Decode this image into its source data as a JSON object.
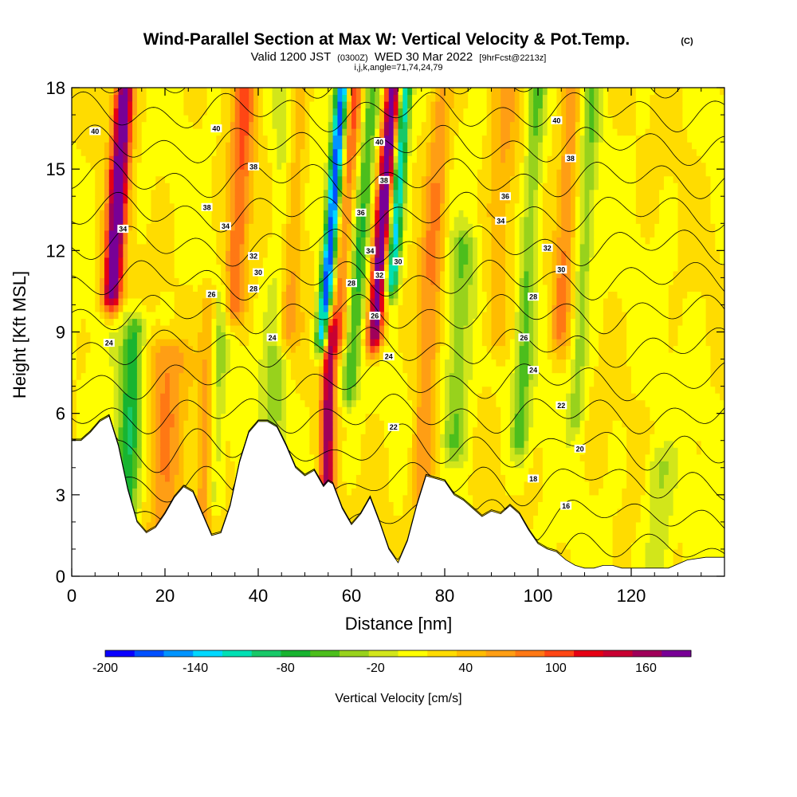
{
  "chart_data": {
    "type": "heatmap",
    "title": "Wind-Parallel Section at Max W: Vertical Velocity & Pot.Temp.",
    "title_mark": "(C)",
    "subtitle": {
      "prefix": "Valid 1200 JST",
      "zulu": "(0300Z)",
      "date": "WED 30 Mar 2022",
      "forecast": "[9hrFcst@2213z]"
    },
    "subtitle2": "i,j,k,angle=71,74,24,79",
    "xlabel": "Distance [nm]",
    "ylabel": "Height [Kft MSL]",
    "xlim": [
      0,
      140
    ],
    "ylim": [
      0,
      18
    ],
    "x_ticks": [
      0,
      20,
      40,
      60,
      80,
      100,
      120
    ],
    "y_ticks": [
      0,
      3,
      6,
      9,
      12,
      15,
      18
    ],
    "colorbar": {
      "label": "Vertical Velocity [cm/s]",
      "min": -200,
      "max": 190,
      "step": 20,
      "tick_labels": [
        "-200",
        "-140",
        "-80",
        "-20",
        "40",
        "100",
        "160"
      ],
      "tick_values": [
        -200,
        -140,
        -80,
        -20,
        40,
        100,
        160
      ],
      "colors": [
        "#0a00ff",
        "#0050ff",
        "#0094ff",
        "#00d8ff",
        "#00e0b4",
        "#18c868",
        "#18b430",
        "#4cbe1c",
        "#98d21c",
        "#d2e61a",
        "#ffff00",
        "#ffdc00",
        "#ffbc00",
        "#ff9e14",
        "#ff7814",
        "#ff4614",
        "#e60014",
        "#c80032",
        "#a0005a",
        "#780096"
      ]
    },
    "terrain": [
      [
        0,
        5.0
      ],
      [
        2,
        5.0
      ],
      [
        4,
        5.3
      ],
      [
        6,
        5.7
      ],
      [
        8,
        5.9
      ],
      [
        10,
        4.8
      ],
      [
        12,
        3.2
      ],
      [
        14,
        2.0
      ],
      [
        16,
        1.6
      ],
      [
        18,
        1.8
      ],
      [
        20,
        2.3
      ],
      [
        22,
        2.9
      ],
      [
        24,
        3.3
      ],
      [
        26,
        3.1
      ],
      [
        28,
        2.3
      ],
      [
        30,
        1.5
      ],
      [
        32,
        1.6
      ],
      [
        34,
        2.6
      ],
      [
        36,
        4.2
      ],
      [
        38,
        5.3
      ],
      [
        40,
        5.7
      ],
      [
        42,
        5.7
      ],
      [
        44,
        5.5
      ],
      [
        46,
        4.8
      ],
      [
        48,
        4.0
      ],
      [
        50,
        3.7
      ],
      [
        52,
        3.9
      ],
      [
        54,
        3.3
      ],
      [
        55,
        3.5
      ],
      [
        56,
        3.4
      ],
      [
        58,
        2.5
      ],
      [
        60,
        1.9
      ],
      [
        62,
        2.3
      ],
      [
        64,
        2.9
      ],
      [
        66,
        2.0
      ],
      [
        68,
        1.0
      ],
      [
        70,
        0.5
      ],
      [
        72,
        1.3
      ],
      [
        74,
        2.6
      ],
      [
        76,
        3.7
      ],
      [
        78,
        3.6
      ],
      [
        80,
        3.5
      ],
      [
        82,
        3.0
      ],
      [
        84,
        2.8
      ],
      [
        86,
        2.5
      ],
      [
        88,
        2.2
      ],
      [
        90,
        2.4
      ],
      [
        92,
        2.3
      ],
      [
        94,
        2.6
      ],
      [
        96,
        2.3
      ],
      [
        98,
        1.7
      ],
      [
        100,
        1.2
      ],
      [
        102,
        1.0
      ],
      [
        104,
        0.9
      ],
      [
        106,
        0.6
      ],
      [
        108,
        0.4
      ],
      [
        110,
        0.3
      ],
      [
        112,
        0.3
      ],
      [
        114,
        0.4
      ],
      [
        116,
        0.4
      ],
      [
        118,
        0.3
      ],
      [
        120,
        0.3
      ],
      [
        124,
        0.3
      ],
      [
        128,
        0.3
      ],
      [
        132,
        0.6
      ],
      [
        136,
        0.7
      ],
      [
        139,
        0.7
      ]
    ],
    "w_features": [
      {
        "x": 10,
        "width": 2.0,
        "w": 190,
        "z_min": 10.5,
        "z_max": 18,
        "tilt": 0.35
      },
      {
        "x": 12,
        "width": 2.5,
        "w": -90,
        "z_min": 0,
        "z_max": 9,
        "tilt": 0.3
      },
      {
        "x": 20,
        "width": 4.0,
        "w": 60,
        "z_min": 0,
        "z_max": 8,
        "tilt": 0.1
      },
      {
        "x": 29,
        "width": 2.0,
        "w": 60,
        "z_min": 0,
        "z_max": 10,
        "tilt": 0.2
      },
      {
        "x": 31,
        "width": 1.8,
        "w": -60,
        "z_min": 3,
        "z_max": 10,
        "tilt": 0.2
      },
      {
        "x": 36,
        "width": 2.5,
        "w": 80,
        "z_min": 10,
        "z_max": 18,
        "tilt": 0.3
      },
      {
        "x": 44,
        "width": 2.5,
        "w": -50,
        "z_min": 0,
        "z_max": 18,
        "tilt": 0.3
      },
      {
        "x": 47,
        "width": 2.5,
        "w": 60,
        "z_min": 9,
        "z_max": 18,
        "tilt": 0.3
      },
      {
        "x": 55,
        "width": 1.5,
        "w": 150,
        "z_min": 3,
        "z_max": 9,
        "tilt": 0.1
      },
      {
        "x": 56,
        "width": 1.4,
        "w": -200,
        "z_min": 9,
        "z_max": 18,
        "tilt": 0.45
      },
      {
        "x": 59,
        "width": 2.0,
        "w": 80,
        "z_min": 9,
        "z_max": 18,
        "tilt": 0.4
      },
      {
        "x": 62,
        "width": 2.0,
        "w": -80,
        "z_min": 7,
        "z_max": 18,
        "tilt": 0.45
      },
      {
        "x": 67,
        "width": 1.8,
        "w": 190,
        "z_min": 9,
        "z_max": 18,
        "tilt": 0.45
      },
      {
        "x": 70,
        "width": 1.5,
        "w": -160,
        "z_min": 11,
        "z_max": 18,
        "tilt": 0.4
      },
      {
        "x": 77,
        "width": 2.5,
        "w": 60,
        "z_min": 3,
        "z_max": 18,
        "tilt": 0.3
      },
      {
        "x": 83,
        "width": 3.0,
        "w": -60,
        "z_min": 5,
        "z_max": 12,
        "tilt": 0.2
      },
      {
        "x": 92,
        "width": 3.0,
        "w": 40,
        "z_min": 9,
        "z_max": 18,
        "tilt": 0.2
      },
      {
        "x": 98,
        "width": 2.0,
        "w": -60,
        "z_min": 5,
        "z_max": 18,
        "tilt": 0.3
      },
      {
        "x": 106,
        "width": 2.0,
        "w": 60,
        "z_min": 9,
        "z_max": 18,
        "tilt": 0.3
      },
      {
        "x": 110,
        "width": 1.8,
        "w": -50,
        "z_min": 6,
        "z_max": 18,
        "tilt": 0.3
      },
      {
        "x": 126,
        "width": 3.0,
        "w": -40,
        "z_min": 0,
        "z_max": 4,
        "tilt": 0.0
      }
    ],
    "theta_contour_labels": [
      {
        "text": "40",
        "x": 5,
        "y": 16.4
      },
      {
        "text": "40",
        "x": 31,
        "y": 16.5
      },
      {
        "text": "38",
        "x": 39,
        "y": 15.1
      },
      {
        "text": "38",
        "x": 29,
        "y": 13.6
      },
      {
        "text": "34",
        "x": 11,
        "y": 12.8
      },
      {
        "text": "34",
        "x": 33,
        "y": 12.9
      },
      {
        "text": "32",
        "x": 39,
        "y": 11.8
      },
      {
        "text": "30",
        "x": 40,
        "y": 11.2
      },
      {
        "text": "28",
        "x": 39,
        "y": 10.6
      },
      {
        "text": "26",
        "x": 30,
        "y": 10.4
      },
      {
        "text": "24",
        "x": 8,
        "y": 8.6
      },
      {
        "text": "24",
        "x": 43,
        "y": 8.8
      },
      {
        "text": "40",
        "x": 66,
        "y": 16.0
      },
      {
        "text": "38",
        "x": 67,
        "y": 14.6
      },
      {
        "text": "36",
        "x": 62,
        "y": 13.4
      },
      {
        "text": "34",
        "x": 64,
        "y": 12.0
      },
      {
        "text": "32",
        "x": 66,
        "y": 11.1
      },
      {
        "text": "30",
        "x": 70,
        "y": 11.6
      },
      {
        "text": "28",
        "x": 60,
        "y": 10.8
      },
      {
        "text": "26",
        "x": 65,
        "y": 9.6
      },
      {
        "text": "24",
        "x": 68,
        "y": 8.1
      },
      {
        "text": "22",
        "x": 69,
        "y": 5.5
      },
      {
        "text": "40",
        "x": 104,
        "y": 16.8
      },
      {
        "text": "38",
        "x": 107,
        "y": 15.4
      },
      {
        "text": "36",
        "x": 93,
        "y": 14.0
      },
      {
        "text": "34",
        "x": 92,
        "y": 13.1
      },
      {
        "text": "32",
        "x": 102,
        "y": 12.1
      },
      {
        "text": "30",
        "x": 105,
        "y": 11.3
      },
      {
        "text": "28",
        "x": 99,
        "y": 10.3
      },
      {
        "text": "26",
        "x": 97,
        "y": 8.8
      },
      {
        "text": "24",
        "x": 99,
        "y": 7.6
      },
      {
        "text": "22",
        "x": 105,
        "y": 6.3
      },
      {
        "text": "20",
        "x": 109,
        "y": 4.7
      },
      {
        "text": "18",
        "x": 99,
        "y": 3.6
      },
      {
        "text": "16",
        "x": 106,
        "y": 2.6
      }
    ],
    "theta_levels": [
      16,
      18,
      20,
      22,
      24,
      26,
      28,
      30,
      32,
      34,
      36,
      38,
      40,
      42,
      44
    ]
  }
}
